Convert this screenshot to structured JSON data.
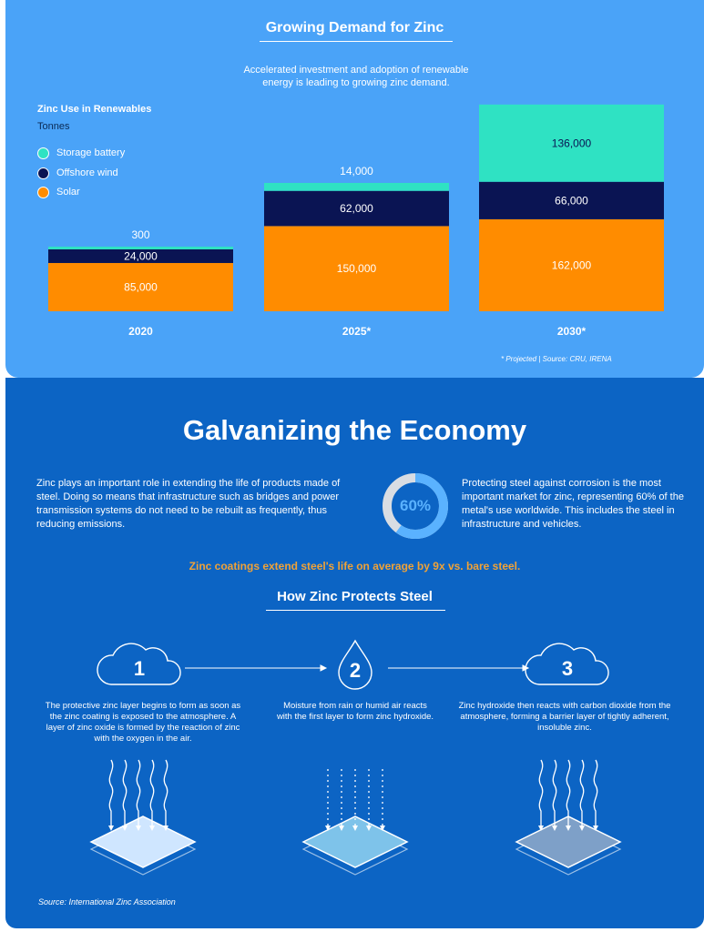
{
  "header": {
    "title": "Growing Demand for Zinc",
    "subtitle_line1": "Accelerated investment and adoption of renewable",
    "subtitle_line2": "energy is leading to growing zinc demand."
  },
  "chart_data": {
    "type": "bar",
    "stacked": true,
    "title": "Zinc Use in Renewables",
    "unit": "Tonnes",
    "categories": [
      "2020",
      "2025",
      "2030"
    ],
    "category_labels": [
      "2020",
      "2025*",
      "2030*"
    ],
    "series": [
      {
        "name": "Solar",
        "color": "#ff8c00",
        "values": [
          85000,
          150000,
          162000
        ],
        "labels": [
          "85,000",
          "150,000",
          "162,000"
        ]
      },
      {
        "name": "Offshore wind",
        "color": "#0a1453",
        "values": [
          24000,
          62000,
          66000
        ],
        "labels": [
          "24,000",
          "62,000",
          "66,000"
        ]
      },
      {
        "name": "Storage battery",
        "color": "#2fe2c3",
        "values": [
          300,
          14000,
          136000
        ],
        "labels": [
          "300",
          "14,000",
          "136,000"
        ]
      }
    ],
    "legend": [
      {
        "name": "Storage battery",
        "color": "#2fe2c3"
      },
      {
        "name": "Offshore wind",
        "color": "#0a1453"
      },
      {
        "name": "Solar",
        "color": "#ff8c00"
      }
    ],
    "legend_position": "top-left",
    "footnote": "* Projected   |   Source: CRU, IRENA"
  },
  "section": {
    "title": "Galvanizing the Economy",
    "left_paragraph": "Zinc plays an important role in extending the life of products made of steel. Doing so means that infrastructure such as bridges and power transmission systems do not need to be rebuilt as frequently, thus reducing emissions.",
    "donut_value": 60,
    "donut_label": "60%",
    "right_paragraph": "Protecting steel against corrosion is the most important market for zinc, representing 60% of the metal's use worldwide. This includes the steel in infrastructure and vehicles.",
    "highlight": "Zinc coatings extend steel's life on average by 9x vs. bare steel."
  },
  "how": {
    "title": "How Zinc Protects Steel",
    "steps": [
      {
        "number": "1",
        "icon": "cloud-icon",
        "text": "The protective zinc layer begins to form as soon as the zinc coating is exposed to the atmosphere. A layer of zinc oxide is formed by the reaction of zinc with the oxygen in the air."
      },
      {
        "number": "2",
        "icon": "droplet-icon",
        "text": "Moisture from rain or humid air reacts with the first layer to form zinc hydroxide."
      },
      {
        "number": "3",
        "icon": "cloud-icon",
        "text": "Zinc hydroxide then reacts with carbon dioxide from the atmosphere, forming a barrier layer of tightly adherent, insoluble zinc."
      }
    ],
    "source": "Source: International Zinc Association"
  },
  "colors": {
    "top_background": "#4aa3f8",
    "bottom_background": "#0c64c4",
    "highlight": "#f0a237"
  }
}
